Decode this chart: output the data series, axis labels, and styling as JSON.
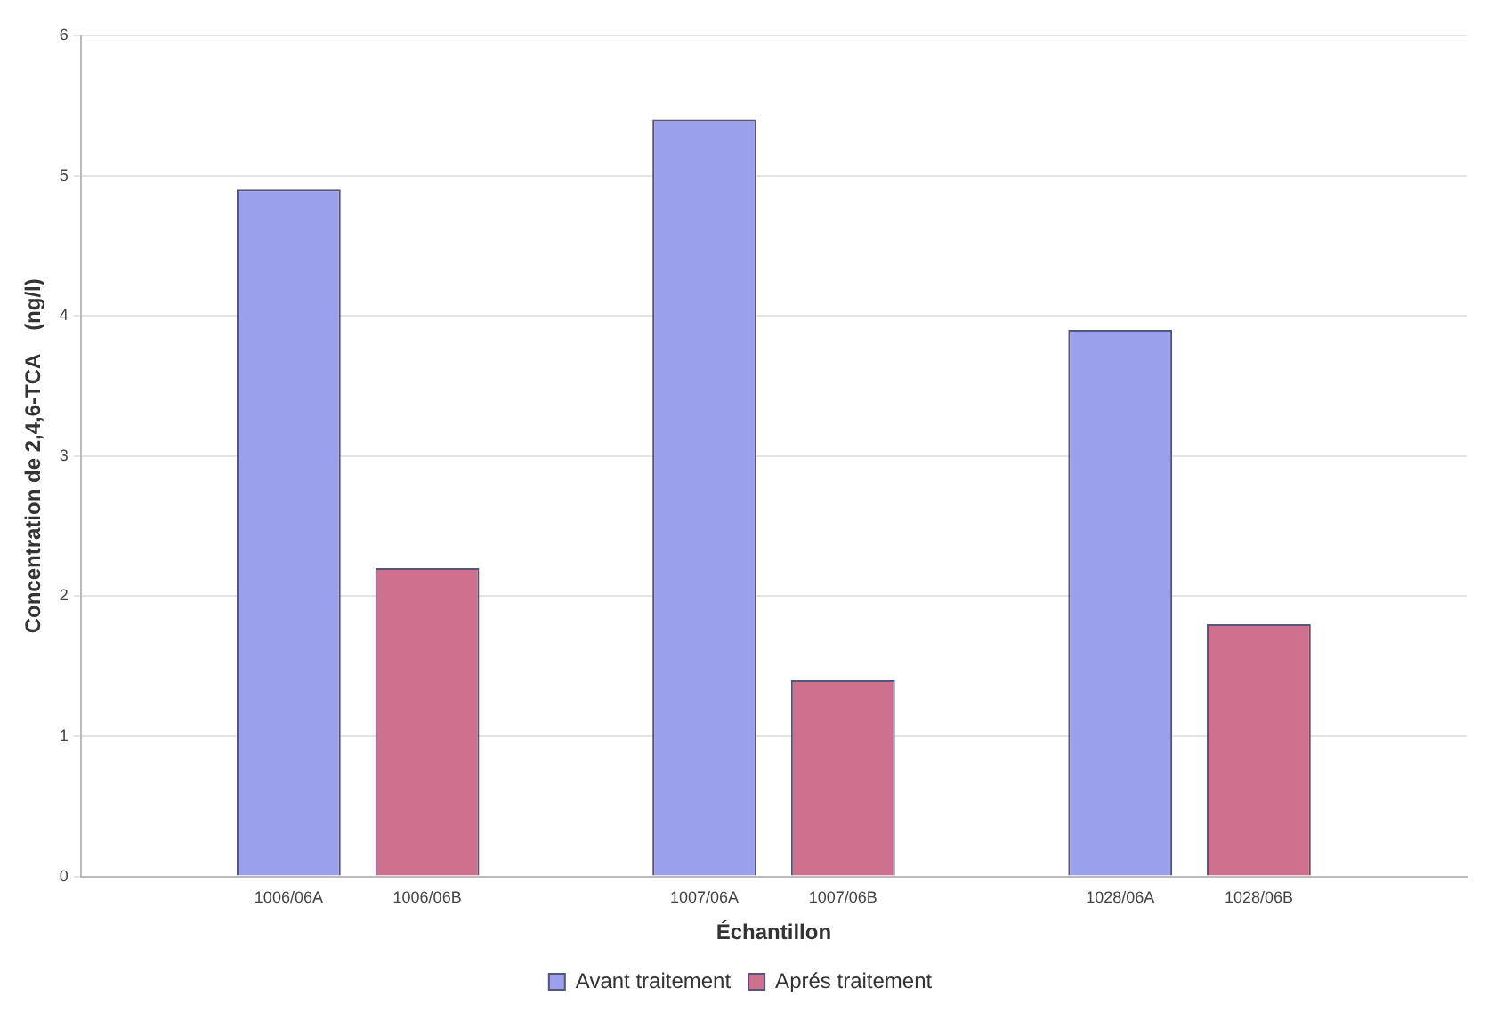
{
  "chart_data": {
    "type": "bar",
    "xlabel": "Échantillon",
    "ylabel": "Concentration de 2,4,6-TCA    (ng/l)",
    "categories": [
      null,
      "1006/06A",
      "1006/06B",
      null,
      "1007/06A",
      "1007/06B",
      null,
      "1028/06A",
      "1028/06B",
      null
    ],
    "series": [
      {
        "name": "Avant traitement",
        "color": "#9aa0ec",
        "values": [
          null,
          4.9,
          null,
          null,
          5.4,
          null,
          null,
          3.9,
          null,
          null
        ]
      },
      {
        "name": "Aprés traitement",
        "color": "#d0708f",
        "values": [
          null,
          null,
          2.2,
          null,
          null,
          1.4,
          null,
          null,
          1.8,
          null
        ]
      }
    ],
    "ylim": [
      0,
      6
    ],
    "yticks": [
      0,
      1,
      2,
      3,
      4,
      5,
      6
    ],
    "grid": "y",
    "legend": "bottom"
  }
}
